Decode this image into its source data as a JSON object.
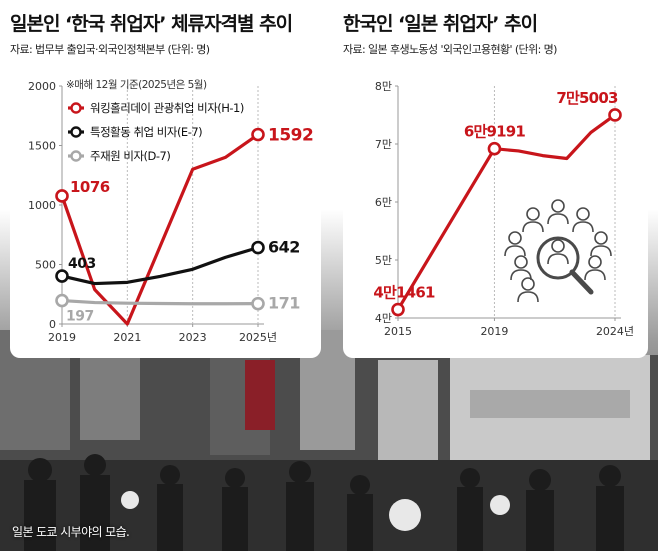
{
  "left": {
    "title": "일본인 ‘한국 취업자’ 체류자격별 추이",
    "source": "자료: 법무부 출입국·외국인정책본부 (단위: 명)",
    "note": "※매해 12월 기준(2025년은 5월)"
  },
  "right": {
    "title": "한국인 ‘일본 취업자’ 추이",
    "source": "자료: 일본 후생노동성 '외국인고용현황' (단위: 명)"
  },
  "caption": "일본 도쿄 시부야의 모습.",
  "colors": {
    "red": "#c8151b",
    "black": "#111111",
    "gray": "#a8a8a8",
    "icon": "#4a4a4a"
  },
  "chart_data": [
    {
      "type": "line",
      "ylim": [
        0,
        2000
      ],
      "yticks": [
        0,
        500,
        1000,
        1500,
        2000
      ],
      "ytick_labels": [
        "0",
        "500",
        "1000",
        "1500",
        "2000"
      ],
      "xlim": [
        2019,
        2025
      ],
      "xticks": [
        2019,
        2021,
        2023,
        2025
      ],
      "xtick_labels": [
        "2019",
        "2021",
        "2023",
        "2025년"
      ],
      "legend_position": "top-left",
      "series": [
        {
          "name": "워킹홀리데이 관광취업 비자(H-1)",
          "color": "red",
          "x": [
            2019,
            2020,
            2021,
            2022,
            2023,
            2024,
            2025
          ],
          "y": [
            1076,
            290,
            0,
            650,
            1300,
            1400,
            1592
          ],
          "labels": [
            {
              "x": 2019,
              "text": "1076"
            },
            {
              "x": 2025,
              "text": "1592"
            }
          ]
        },
        {
          "name": "특정활동 취업 비자(E-7)",
          "color": "black",
          "x": [
            2019,
            2020,
            2021,
            2022,
            2023,
            2024,
            2025
          ],
          "y": [
            403,
            340,
            350,
            400,
            460,
            560,
            642
          ],
          "labels": [
            {
              "x": 2019,
              "text": "403"
            },
            {
              "x": 2025,
              "text": "642"
            }
          ]
        },
        {
          "name": "주재원 비자(D-7)",
          "color": "gray",
          "x": [
            2019,
            2020,
            2021,
            2022,
            2023,
            2024,
            2025
          ],
          "y": [
            197,
            180,
            175,
            172,
            170,
            170,
            171
          ],
          "labels": [
            {
              "x": 2019,
              "text": "197"
            },
            {
              "x": 2025,
              "text": "171"
            }
          ]
        }
      ]
    },
    {
      "type": "line",
      "ylim": [
        40000,
        80000
      ],
      "yticks": [
        40000,
        50000,
        60000,
        70000,
        80000
      ],
      "ytick_labels": [
        "4만",
        "5만",
        "6만",
        "7만",
        "8만"
      ],
      "xlim": [
        2015,
        2024
      ],
      "xticks": [
        2015,
        2019,
        2024
      ],
      "xtick_labels": [
        "2015",
        "2019",
        "2024년"
      ],
      "series": [
        {
          "color": "red",
          "x": [
            2015,
            2019,
            2020,
            2021,
            2022,
            2023,
            2024
          ],
          "y": [
            41461,
            69191,
            68800,
            68000,
            67500,
            72000,
            75003
          ],
          "labels": [
            {
              "x": 2015,
              "text": "4만1461"
            },
            {
              "x": 2019,
              "text": "6만9191"
            },
            {
              "x": 2024,
              "text": "7만5003"
            }
          ]
        }
      ]
    }
  ]
}
